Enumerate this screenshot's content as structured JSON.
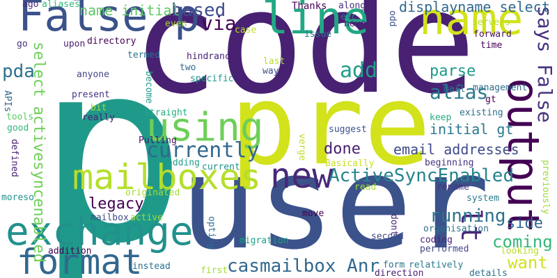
{
  "palette": [
    "#440154",
    "#46327e",
    "#365c8d",
    "#277f8e",
    "#1fa187",
    "#4ac16d",
    "#a0da39",
    "#fde725"
  ],
  "words": [
    {
      "text": "p",
      "color": "#1f9a8a"
    },
    {
      "text": "code",
      "color": "#482173"
    },
    {
      "text": "user",
      "color": "#3b528b"
    },
    {
      "text": "pre",
      "color": "#d2e21b"
    },
    {
      "text": "exchange",
      "color": "#21918c"
    },
    {
      "text": "False p",
      "color": "#3b528b"
    },
    {
      "text": "line",
      "color": "#22a884"
    },
    {
      "text": "name",
      "color": "#d2e21b"
    },
    {
      "text": "output",
      "color": "#440154"
    },
    {
      "text": "using",
      "color": "#6ece58"
    },
    {
      "text": "mailboxes",
      "color": "#b5de2b"
    },
    {
      "text": "new",
      "color": "#482878"
    },
    {
      "text": "format",
      "color": "#31688e"
    },
    {
      "text": "currently",
      "color": "#31688e"
    },
    {
      "text": "lt",
      "color": "#482878"
    },
    {
      "text": "ActiveSyncEnabled",
      "color": "#25848e"
    },
    {
      "text": "casmailbox Anr",
      "color": "#31688e"
    },
    {
      "text": "add",
      "color": "#1f9e89"
    },
    {
      "text": "alias",
      "color": "#2a788e"
    },
    {
      "text": "parse",
      "color": "#1f9a8a"
    },
    {
      "text": "legacy",
      "color": "#440154"
    },
    {
      "text": "done",
      "color": "#482173"
    },
    {
      "text": "running",
      "color": "#2c728e"
    },
    {
      "text": "coming",
      "color": "#35b779"
    },
    {
      "text": "want",
      "color": "#d2e21b"
    },
    {
      "text": "side",
      "color": "#30678d"
    },
    {
      "text": "says False",
      "color": "#46327e"
    },
    {
      "text": "via",
      "color": "#440154"
    },
    {
      "text": "based",
      "color": "#3e4a89"
    },
    {
      "text": "pda",
      "color": "#2c728e"
    },
    {
      "text": "select activesyncenabled",
      "color": "#6ece58"
    },
    {
      "text": "email addresses",
      "color": "#3e4a89"
    },
    {
      "text": "initial gt",
      "color": "#2a788e"
    },
    {
      "text": "name initial",
      "color": "#5ec962"
    },
    {
      "text": "displayname select",
      "color": "#31688e"
    },
    {
      "text": "ago",
      "color": "#472d7b"
    },
    {
      "text": "aliases",
      "color": "#35b779"
    },
    {
      "text": "Thanks",
      "color": "#440154"
    },
    {
      "text": "along",
      "color": "#472d7b"
    },
    {
      "text": "etc",
      "color": "#2a788e"
    },
    {
      "text": "never",
      "color": "#482173"
    },
    {
      "text": "odd",
      "color": "#3b528b"
    },
    {
      "text": "even",
      "color": "#a5db36"
    },
    {
      "text": "case",
      "color": "#bddf26"
    },
    {
      "text": "issue",
      "color": "#2c728e"
    },
    {
      "text": "servers",
      "color": "#b5de2b"
    },
    {
      "text": "forward",
      "color": "#481467"
    },
    {
      "text": "time",
      "color": "#440154"
    },
    {
      "text": "go",
      "color": "#46327e"
    },
    {
      "text": "upon",
      "color": "#482173"
    },
    {
      "text": "directory",
      "color": "#440154"
    },
    {
      "text": "termed",
      "color": "#2c728e"
    },
    {
      "text": "hindrance",
      "color": "#482173"
    },
    {
      "text": "two",
      "color": "#31688e"
    },
    {
      "text": "last",
      "color": "#b5de2b"
    },
    {
      "text": "way",
      "color": "#3e4a89"
    },
    {
      "text": "specific",
      "color": "#1f9a8a"
    },
    {
      "text": "mail",
      "color": "#2a788e"
    },
    {
      "text": "management",
      "color": "#2e6e8e"
    },
    {
      "text": "gt",
      "color": "#440154"
    },
    {
      "text": "anyone",
      "color": "#414487"
    },
    {
      "text": "become",
      "color": "#1f9a8a"
    },
    {
      "text": "APIs",
      "color": "#31688e"
    },
    {
      "text": "present",
      "color": "#46327e"
    },
    {
      "text": "bit",
      "color": "#a5db36"
    },
    {
      "text": "really",
      "color": "#482173"
    },
    {
      "text": "straight",
      "color": "#26ad81"
    },
    {
      "text": "keep",
      "color": "#26ad81"
    },
    {
      "text": "existing",
      "color": "#2e6e8e"
    },
    {
      "text": "tools",
      "color": "#5ec962"
    },
    {
      "text": "good",
      "color": "#35b779"
    },
    {
      "text": "suggest",
      "color": "#3b528b"
    },
    {
      "text": "Pulling",
      "color": "#481467"
    },
    {
      "text": "verge",
      "color": "#bddf26"
    },
    {
      "text": "adding",
      "color": "#1f9e89"
    },
    {
      "text": "beginning",
      "color": "#46327e"
    },
    {
      "text": "defined",
      "color": "#482173"
    },
    {
      "text": "current",
      "color": "#21918c"
    },
    {
      "text": "Basically",
      "color": "#c8e020"
    },
    {
      "text": "previously",
      "color": "#a0da39"
    },
    {
      "text": "originated",
      "color": "#a5db36"
    },
    {
      "text": "read",
      "color": "#a5db36"
    },
    {
      "text": "rename",
      "color": "#46327e"
    },
    {
      "text": "system",
      "color": "#277f8e"
    },
    {
      "text": "moreso",
      "color": "#21918c"
    },
    {
      "text": "mailbox",
      "color": "#3e4a89"
    },
    {
      "text": "active",
      "color": "#a0da39"
    },
    {
      "text": "move",
      "color": "#440154"
    },
    {
      "text": "dont",
      "color": "#482878"
    },
    {
      "text": "organisation",
      "color": "#2c728e"
    },
    {
      "text": "opting",
      "color": "#2e6e8e"
    },
    {
      "text": "coding",
      "color": "#482173"
    },
    {
      "text": "migration",
      "color": "#1f9e89"
    },
    {
      "text": "second",
      "color": "#3e4a89"
    },
    {
      "text": "addition",
      "color": "#440154"
    },
    {
      "text": "performed",
      "color": "#404688"
    },
    {
      "text": "looking",
      "color": "#b8de29"
    },
    {
      "text": "form",
      "color": "#2c728e"
    },
    {
      "text": "relatively",
      "color": "#2a788e"
    },
    {
      "text": "instead",
      "color": "#2c728e"
    },
    {
      "text": "first",
      "color": "#a5db36"
    },
    {
      "text": "direction",
      "color": "#482173"
    },
    {
      "text": "details",
      "color": "#2c728e"
    }
  ]
}
